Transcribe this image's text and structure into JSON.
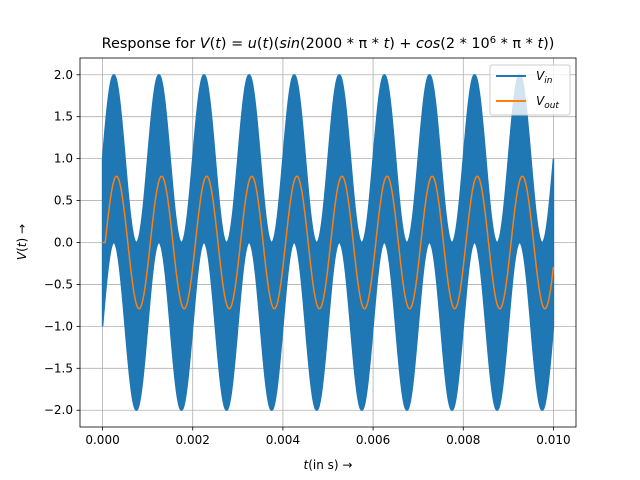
{
  "chart_data": {
    "type": "line",
    "title": "Response for V(t) = u(t)(sin(2000*π*t) + cos(2*10^6*π*t))",
    "xlabel": "t(in s) →",
    "ylabel": "V(t) →",
    "xlim": [
      -0.0005,
      0.0105
    ],
    "ylim": [
      -2.2,
      2.2
    ],
    "x_ticks": [
      "0.000",
      "0.002",
      "0.004",
      "0.006",
      "0.008",
      "0.010"
    ],
    "y_ticks": [
      "-2.0",
      "-1.5",
      "-1.0",
      "-0.5",
      "0.0",
      "0.5",
      "1.0",
      "1.5",
      "2.0"
    ],
    "grid": true,
    "legend_position": "top-right",
    "x_range": [
      0,
      0.01
    ],
    "series": [
      {
        "name": "V_in",
        "color": "#1f77b4",
        "description": "sin(2000*π*t) + cos(2*10^6*π*t)",
        "low_freq_amplitude": 1.0,
        "low_freq_hz": 1000,
        "carrier_amplitude": 1.0,
        "carrier_hz": 1000000
      },
      {
        "name": "V_out",
        "color": "#ff7f0e",
        "amplitude": 0.79,
        "freq_hz": 1000,
        "phase_delay_s": 6e-05
      }
    ]
  }
}
